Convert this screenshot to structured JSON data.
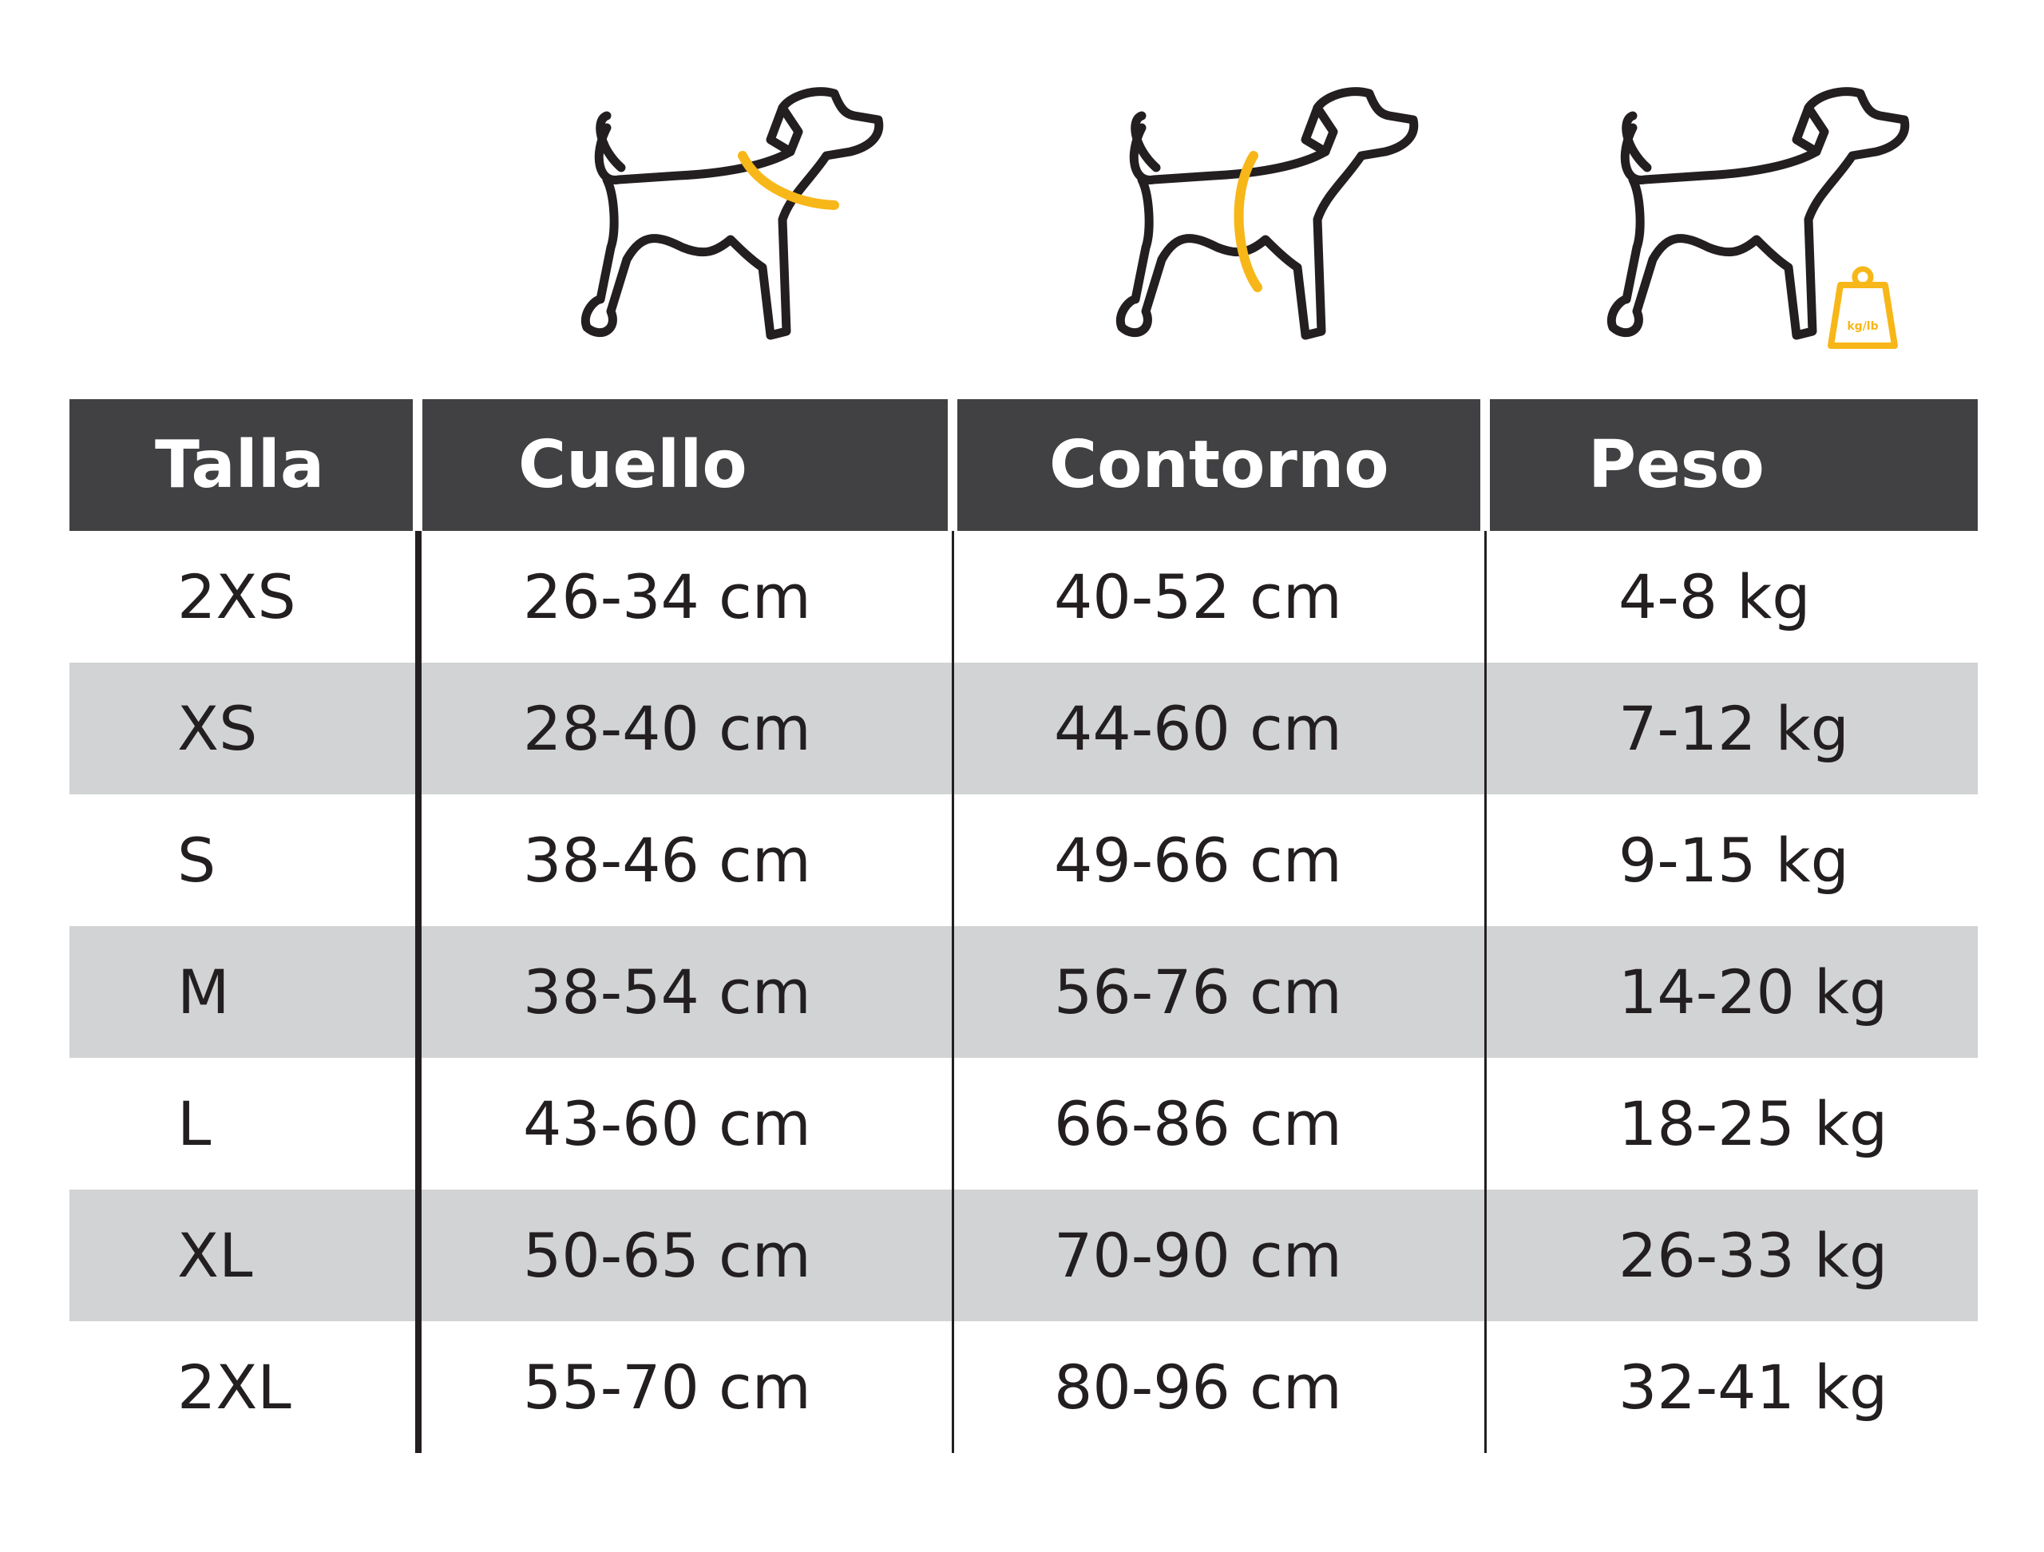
{
  "icons": [
    {
      "name": "neck-measure-dog-icon",
      "highlight": "neck"
    },
    {
      "name": "chest-girth-dog-icon",
      "highlight": "chest"
    },
    {
      "name": "weight-dog-icon",
      "highlight": "weight",
      "weight_label": "kg/lb"
    }
  ],
  "colors": {
    "header_bg": "#414042",
    "header_text": "#ffffff",
    "row_shaded": "#d1d3d4",
    "text": "#231f20",
    "accent": "#f7b718"
  },
  "table": {
    "headers": {
      "size": "Talla",
      "neck": "Cuello",
      "chest": "Contorno",
      "weight": "Peso"
    },
    "rows": [
      {
        "size": "2XS",
        "neck": "26-34 cm",
        "chest": "40-52 cm",
        "weight": "4-8 kg"
      },
      {
        "size": "XS",
        "neck": "28-40 cm",
        "chest": "44-60 cm",
        "weight": "7-12 kg"
      },
      {
        "size": "S",
        "neck": "38-46 cm",
        "chest": "49-66 cm",
        "weight": "9-15 kg"
      },
      {
        "size": "M",
        "neck": "38-54 cm",
        "chest": "56-76 cm",
        "weight": "14-20 kg"
      },
      {
        "size": "L",
        "neck": "43-60 cm",
        "chest": "66-86 cm",
        "weight": "18-25 kg"
      },
      {
        "size": "XL",
        "neck": "50-65 cm",
        "chest": "70-90 cm",
        "weight": "26-33 kg"
      },
      {
        "size": "2XL",
        "neck": "55-70 cm",
        "chest": "80-96 cm",
        "weight": "32-41 kg"
      }
    ]
  }
}
